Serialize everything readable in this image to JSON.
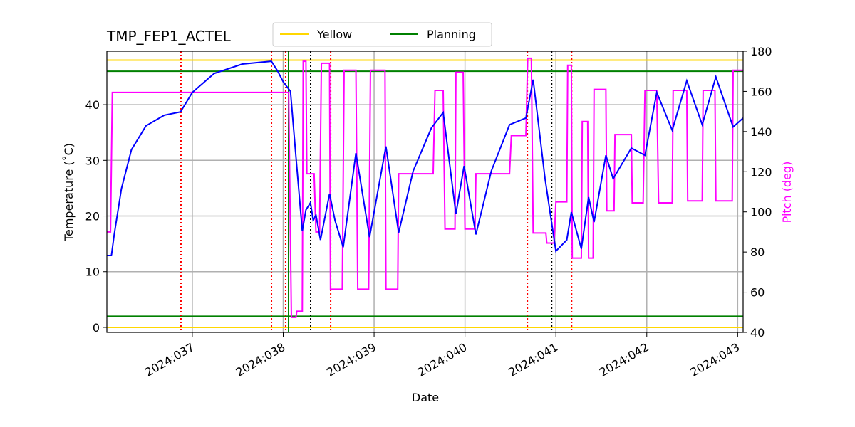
{
  "chart_data": {
    "type": "line",
    "title": "TMP_FEP1_ACTEL",
    "xlabel": "Date",
    "ylabel": "Temperature (˚C)",
    "y2label": "Pitch (deg)",
    "xlim": [
      36.06,
      43.06
    ],
    "xticks": [
      {
        "value": 37,
        "label": "2024:037"
      },
      {
        "value": 38,
        "label": "2024:038"
      },
      {
        "value": 39,
        "label": "2024:039"
      },
      {
        "value": 40,
        "label": "2024:040"
      },
      {
        "value": 41,
        "label": "2024:041"
      },
      {
        "value": 42,
        "label": "2024:042"
      },
      {
        "value": 43,
        "label": "2024:043"
      }
    ],
    "ylim": [
      -0.9,
      49.6
    ],
    "yticks": [
      0,
      10,
      20,
      30,
      40
    ],
    "y2lim": [
      40,
      180
    ],
    "y2ticks": [
      40,
      60,
      80,
      100,
      120,
      140,
      160,
      180
    ],
    "y2color": "#ff00ff",
    "grid": true,
    "legend": "top",
    "hlines": [
      {
        "name": "Yellow",
        "color": "#ffd700",
        "values": [
          48,
          0
        ]
      },
      {
        "name": "Planning",
        "color": "#008000",
        "values": [
          46,
          2
        ]
      }
    ],
    "vlines": [
      {
        "color": "#ff0000",
        "style": "dotted",
        "values": [
          36.875,
          37.871,
          38.027,
          38.522,
          40.686,
          41.173
        ]
      },
      {
        "color": "#000000",
        "style": "dotted",
        "values": [
          38.302,
          40.953
        ]
      },
      {
        "color": "#008000",
        "style": "solid",
        "values": [
          38.059
        ]
      }
    ],
    "series": [
      {
        "color": "#ff00ff",
        "axis": "y2",
        "x": [
          36.06,
          36.1,
          36.12,
          38.06,
          38.09,
          38.14,
          38.15,
          38.21,
          38.22,
          38.25,
          38.26,
          38.34,
          38.36,
          38.4,
          38.42,
          38.51,
          38.52,
          38.65,
          38.67,
          38.8,
          38.82,
          38.94,
          38.96,
          39.12,
          39.13,
          39.26,
          39.27,
          39.65,
          39.67,
          39.76,
          39.78,
          39.89,
          39.9,
          39.98,
          40.0,
          40.11,
          40.12,
          40.49,
          40.51,
          40.67,
          40.69,
          40.73,
          40.75,
          40.89,
          40.9,
          40.98,
          41.0,
          41.12,
          41.13,
          41.17,
          41.18,
          41.28,
          41.29,
          41.35,
          41.36,
          41.41,
          41.42,
          41.55,
          41.56,
          41.64,
          41.65,
          41.83,
          41.84,
          41.96,
          41.98,
          42.11,
          42.13,
          42.28,
          42.29,
          42.44,
          42.45,
          42.61,
          42.62,
          42.75,
          42.76,
          42.94,
          42.95,
          43.06
        ],
        "values": [
          90,
          90,
          159.5,
          159.5,
          47.5,
          47.5,
          50.5,
          50.5,
          175,
          175,
          119,
          119,
          90,
          90,
          174,
          174,
          61.5,
          61.5,
          170.5,
          170.5,
          61.5,
          61.5,
          170.5,
          170.5,
          61.5,
          61.5,
          119,
          119,
          160.5,
          160.5,
          91.5,
          91.5,
          169.5,
          169.5,
          91.5,
          91.5,
          119,
          119,
          138,
          138,
          176.5,
          176.5,
          89.5,
          89.5,
          84.5,
          84.5,
          105,
          105,
          173,
          173,
          77,
          77,
          145,
          145,
          77,
          77,
          161,
          161,
          100.5,
          100.5,
          138.5,
          138.5,
          104.5,
          104.5,
          160.5,
          160.5,
          104.5,
          104.5,
          160.5,
          160.5,
          105.5,
          105.5,
          160.5,
          160.5,
          105.5,
          105.5,
          170.5,
          170.5
        ]
      },
      {
        "color": "#0000ff",
        "x": [
          36.06,
          36.11,
          36.14,
          36.22,
          36.33,
          36.49,
          36.69,
          36.87,
          37.0,
          37.24,
          37.55,
          37.87,
          37.94,
          38.0,
          38.08,
          38.14,
          38.21,
          38.25,
          38.3,
          38.33,
          38.36,
          38.41,
          38.51,
          38.57,
          38.66,
          38.8,
          38.95,
          39.13,
          39.27,
          39.43,
          39.63,
          39.76,
          39.9,
          39.99,
          40.12,
          40.29,
          40.49,
          40.67,
          40.75,
          40.88,
          41.0,
          41.12,
          41.17,
          41.28,
          41.36,
          41.42,
          41.55,
          41.63,
          41.83,
          41.98,
          42.11,
          42.28,
          42.44,
          42.61,
          42.76,
          42.95,
          43.06
        ],
        "values": [
          12.9,
          12.9,
          16.6,
          24.9,
          31.9,
          36.2,
          38.1,
          38.7,
          42.2,
          45.6,
          47.3,
          47.8,
          46.0,
          44.1,
          42.4,
          30.7,
          17.3,
          21.1,
          22.4,
          19.2,
          20.2,
          15.7,
          24.0,
          19.2,
          14.4,
          31.3,
          16.2,
          32.5,
          17.0,
          28.1,
          35.8,
          38.6,
          20.4,
          29.0,
          16.7,
          28.1,
          36.4,
          37.6,
          44.5,
          26.8,
          13.7,
          15.7,
          20.7,
          14.1,
          23.4,
          18.9,
          30.9,
          26.7,
          32.2,
          30.9,
          42.2,
          35.4,
          44.3,
          36.4,
          45.0,
          36.0,
          37.6
        ]
      }
    ]
  }
}
